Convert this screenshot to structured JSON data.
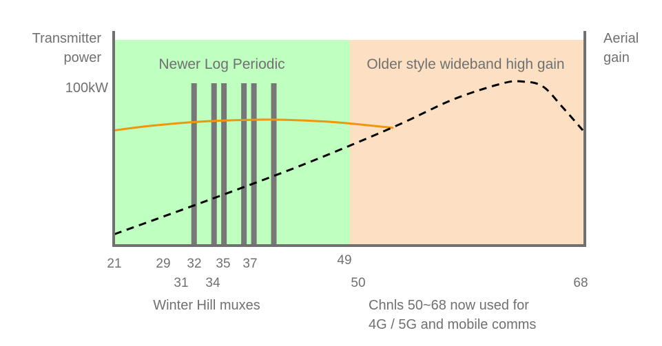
{
  "labels": {
    "left_axis_line1": "Transmitter",
    "left_axis_line2": "power",
    "right_axis_line1": "Aerial",
    "right_axis_line2": "gain",
    "power_marker": "100kW",
    "band_left": "Newer Log Periodic",
    "band_right": "Older style wideband high gain",
    "mux_caption": "Winter Hill muxes",
    "note_line1": "Chnls 50~68 now used for",
    "note_line2": "4G / 5G and mobile comms"
  },
  "ticks": {
    "t21": "21",
    "t29": "29",
    "t31": "31",
    "t32": "32",
    "t34": "34",
    "t35": "35",
    "t37": "37",
    "t49": "49",
    "t50": "50",
    "t68": "68"
  },
  "colors": {
    "band_left": "#bfffbf",
    "band_right": "#fde0c3",
    "axis": "#707070",
    "mux_bars": "#777777",
    "log_periodic_curve": "#f0960a",
    "wideband_curve": "#000000"
  },
  "chart_data": {
    "type": "diagram",
    "x_range": [
      21,
      68
    ],
    "bands": [
      {
        "label": "Newer Log Periodic",
        "from": 21,
        "to": 49.5
      },
      {
        "label": "Older style wideband high gain",
        "from": 49.5,
        "to": 68
      }
    ],
    "mux_channels": [
      29,
      31,
      32,
      34,
      35,
      37
    ],
    "mux_level": 100,
    "log_periodic_gain": {
      "x": [
        21,
        25,
        30,
        35,
        38,
        42,
        45,
        49
      ],
      "y": [
        71,
        74,
        76.5,
        77.5,
        77.5,
        76.5,
        75,
        72.5
      ]
    },
    "wideband_gain": {
      "x": [
        21,
        30,
        40,
        49,
        55,
        60,
        62,
        64,
        66,
        68
      ],
      "y": [
        7,
        27,
        50,
        73,
        90,
        100,
        101,
        98,
        85,
        71
      ]
    }
  }
}
